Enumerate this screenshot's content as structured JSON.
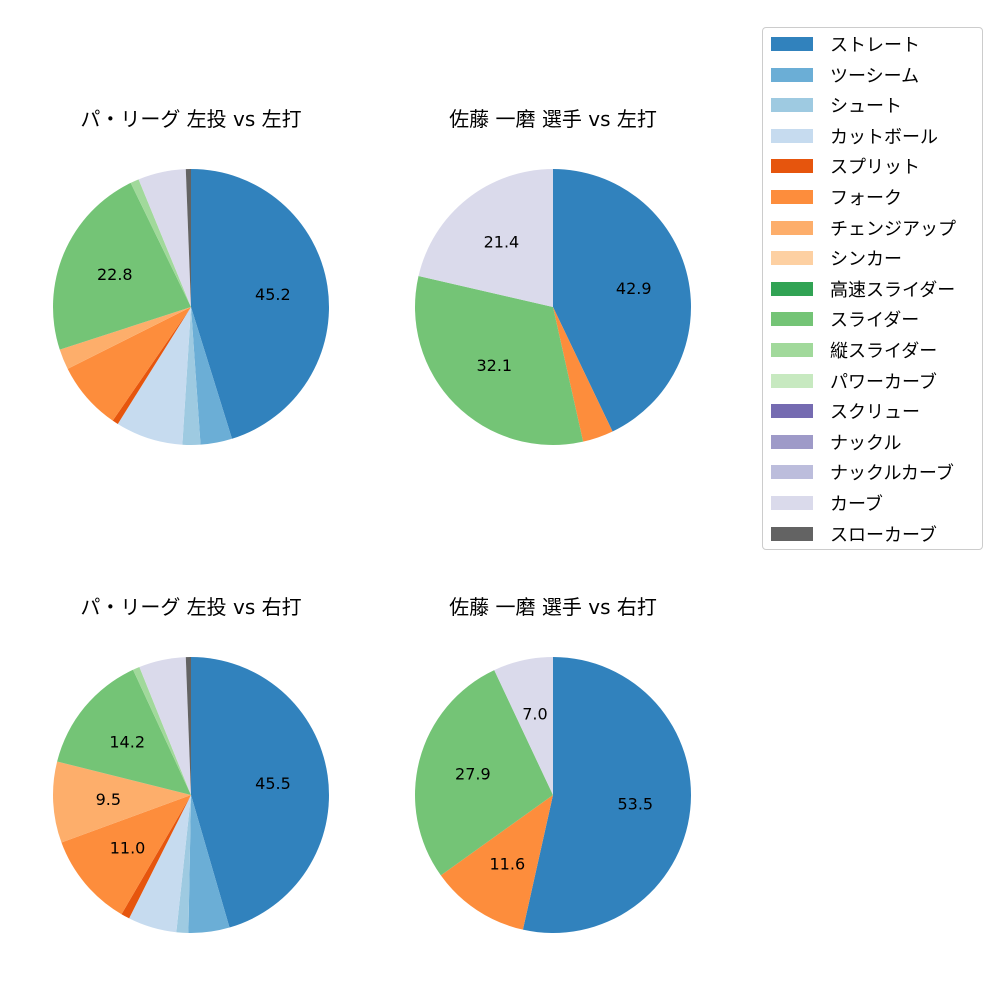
{
  "legend": {
    "items": [
      "ストレート",
      "ツーシーム",
      "シュート",
      "カットボール",
      "スプリット",
      "フォーク",
      "チェンジアップ",
      "シンカー",
      "高速スライダー",
      "スライダー",
      "縦スライダー",
      "パワーカーブ",
      "スクリュー",
      "ナックル",
      "ナックルカーブ",
      "カーブ",
      "スローカーブ"
    ],
    "colors": [
      "#3182bd",
      "#6baed6",
      "#9ecae1",
      "#c6dbef",
      "#e6550d",
      "#fd8d3c",
      "#fdae6b",
      "#fdd0a2",
      "#31a354",
      "#74c476",
      "#a1d99b",
      "#c7e9c0",
      "#756bb1",
      "#9e9ac8",
      "#bcbddc",
      "#dadaeb",
      "#636363"
    ]
  },
  "chart_data": [
    {
      "type": "pie",
      "title": "パ・リーグ 左投 vs 左打",
      "start": "top",
      "direction": "clockwise",
      "slices": [
        {
          "name": "ストレート",
          "value": 45.2,
          "label": "45.2"
        },
        {
          "name": "ツーシーム",
          "value": 3.7
        },
        {
          "name": "シュート",
          "value": 2.1
        },
        {
          "name": "カットボール",
          "value": 7.9
        },
        {
          "name": "スプリット",
          "value": 0.7
        },
        {
          "name": "フォーク",
          "value": 8.0
        },
        {
          "name": "チェンジアップ",
          "value": 2.4
        },
        {
          "name": "スライダー",
          "value": 22.8,
          "label": "22.8"
        },
        {
          "name": "縦スライダー",
          "value": 1.0
        },
        {
          "name": "カーブ",
          "value": 5.6
        },
        {
          "name": "スローカーブ",
          "value": 0.6
        }
      ]
    },
    {
      "type": "pie",
      "title": "佐藤 一磨 選手 vs 左打",
      "start": "top",
      "direction": "clockwise",
      "slices": [
        {
          "name": "ストレート",
          "value": 42.9,
          "label": "42.9"
        },
        {
          "name": "フォーク",
          "value": 3.6
        },
        {
          "name": "スライダー",
          "value": 32.1,
          "label": "32.1"
        },
        {
          "name": "カーブ",
          "value": 21.4,
          "label": "21.4"
        }
      ]
    },
    {
      "type": "pie",
      "title": "パ・リーグ 左投 vs 右打",
      "start": "top",
      "direction": "clockwise",
      "slices": [
        {
          "name": "ストレート",
          "value": 45.5,
          "label": "45.5"
        },
        {
          "name": "ツーシーム",
          "value": 4.8
        },
        {
          "name": "シュート",
          "value": 1.4
        },
        {
          "name": "カットボール",
          "value": 5.7
        },
        {
          "name": "スプリット",
          "value": 1.0
        },
        {
          "name": "フォーク",
          "value": 11.0,
          "label": "11.0"
        },
        {
          "name": "チェンジアップ",
          "value": 9.5,
          "label": "9.5"
        },
        {
          "name": "スライダー",
          "value": 14.2,
          "label": "14.2"
        },
        {
          "name": "縦スライダー",
          "value": 0.8
        },
        {
          "name": "カーブ",
          "value": 5.5
        },
        {
          "name": "スローカーブ",
          "value": 0.6
        }
      ]
    },
    {
      "type": "pie",
      "title": "佐藤 一磨 選手 vs 右打",
      "start": "top",
      "direction": "clockwise",
      "slices": [
        {
          "name": "ストレート",
          "value": 53.5,
          "label": "53.5"
        },
        {
          "name": "フォーク",
          "value": 11.6,
          "label": "11.6"
        },
        {
          "name": "スライダー",
          "value": 27.9,
          "label": "27.9"
        },
        {
          "name": "カーブ",
          "value": 7.0,
          "label": "7.0"
        }
      ]
    }
  ]
}
